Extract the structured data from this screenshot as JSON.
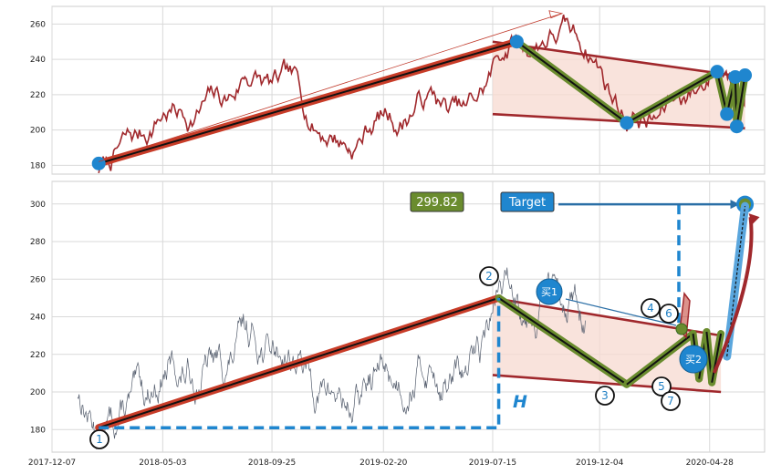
{
  "colors": {
    "price_top": "#a0282c",
    "price_bottom": "#555e6e",
    "trend_red": "#c83c28",
    "wedge_fill": "#f7d9d0",
    "wedge_border": "#a0282c",
    "green": "#6a8c2e",
    "dark": "#111111",
    "blue": "#1f86cf",
    "dashed_blue": "#1f86cf",
    "badge_green": "#6a8c2e",
    "badge_blue": "#1f86cf"
  },
  "chart_data": [
    {
      "type": "line",
      "name_id": "top_panel",
      "ylim": [
        175,
        270
      ],
      "yticks": [
        180,
        200,
        220,
        240,
        260
      ],
      "xlim": [
        "2017-12-07",
        "2020-07-10"
      ],
      "grid": true,
      "trend_points": [
        {
          "date": "2018-02-07",
          "value": 181
        },
        {
          "date": "2019-08-16",
          "value": 250
        },
        {
          "date": "2020-01-09",
          "value": 204
        },
        {
          "date": "2020-05-08",
          "value": 233
        },
        {
          "date": "2020-05-21",
          "value": 209
        },
        {
          "date": "2020-06-01",
          "value": 230
        },
        {
          "date": "2020-06-03",
          "value": 202
        },
        {
          "date": "2020-06-14",
          "value": 231
        }
      ],
      "wedge_upper": [
        {
          "date": "2019-07-15",
          "value": 250
        },
        {
          "date": "2020-06-14",
          "value": 230
        }
      ],
      "wedge_lower": [
        {
          "date": "2019-07-15",
          "value": 209
        },
        {
          "date": "2020-06-14",
          "value": 201
        }
      ]
    },
    {
      "type": "line",
      "name_id": "bottom_panel",
      "ylim": [
        168,
        312
      ],
      "yticks": [
        180,
        200,
        220,
        240,
        260,
        280,
        300
      ],
      "xlim": [
        "2017-12-07",
        "2020-07-10"
      ],
      "xticks": [
        "2017-12-07",
        "2018-05-03",
        "2018-09-25",
        "2019-02-20",
        "2019-07-15",
        "2019-12-04",
        "2020-04-28"
      ],
      "grid": true,
      "trend_points": [
        {
          "date": "2018-02-07",
          "value": 181
        },
        {
          "date": "2019-07-23",
          "value": 250
        },
        {
          "date": "2020-01-09",
          "value": 204
        },
        {
          "date": "2020-04-06",
          "value": 231
        },
        {
          "date": "2020-04-14",
          "value": 207
        },
        {
          "date": "2020-04-24",
          "value": 232
        },
        {
          "date": "2020-05-01",
          "value": 205
        },
        {
          "date": "2020-05-13",
          "value": 231
        }
      ],
      "wedge_upper": [
        {
          "date": "2019-07-15",
          "value": 250
        },
        {
          "date": "2020-05-13",
          "value": 230
        }
      ],
      "wedge_lower": [
        {
          "date": "2019-07-15",
          "value": 209
        },
        {
          "date": "2020-05-13",
          "value": 200
        }
      ],
      "target_value": 299.82,
      "target_date": "2020-06-14",
      "buy1_date": "2019-09-26",
      "buy1_value": 251,
      "buy2_date": "2020-05-21",
      "buy2_value": 215,
      "labels": {
        "value_badge": "299.82",
        "target_badge": "Target",
        "h_label": "H",
        "buy1": "买1",
        "buy2": "买2",
        "n1": "1",
        "n2": "2",
        "n3": "3",
        "n4": "4",
        "n5": "5",
        "n6": "6",
        "n7": "7"
      }
    }
  ]
}
